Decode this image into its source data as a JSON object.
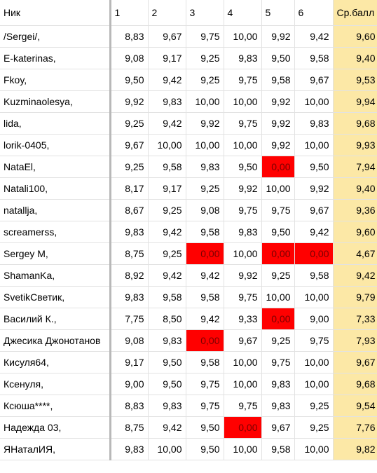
{
  "sheet": {
    "headers": [
      "Ник",
      "1",
      "2",
      "3",
      "4",
      "5",
      "6",
      "Ср.балл"
    ],
    "rows": [
      {
        "name": "/Sergei/,",
        "s1": "8,83",
        "s2": "9,67",
        "s3": "9,75",
        "s4": "10,00",
        "s5": "9,92",
        "s6": "9,42",
        "avg": "9,60"
      },
      {
        "name": "E-katerinas,",
        "s1": "9,08",
        "s2": "9,17",
        "s3": "9,25",
        "s4": "9,83",
        "s5": "9,50",
        "s6": "9,58",
        "avg": "9,40"
      },
      {
        "name": "Fkoy,",
        "s1": "9,50",
        "s2": "9,42",
        "s3": "9,25",
        "s4": "9,75",
        "s5": "9,58",
        "s6": "9,67",
        "avg": "9,53"
      },
      {
        "name": "Kuzminaolesya,",
        "s1": "9,92",
        "s2": "9,83",
        "s3": "10,00",
        "s4": "10,00",
        "s5": "9,92",
        "s6": "10,00",
        "avg": "9,94"
      },
      {
        "name": "lida,",
        "s1": "9,25",
        "s2": "9,42",
        "s3": "9,92",
        "s4": "9,75",
        "s5": "9,92",
        "s6": "9,83",
        "avg": "9,68"
      },
      {
        "name": "lorik-0405,",
        "s1": "9,67",
        "s2": "10,00",
        "s3": "10,00",
        "s4": "10,00",
        "s5": "9,92",
        "s6": "10,00",
        "avg": "9,93"
      },
      {
        "name": "NataEl,",
        "s1": "9,25",
        "s2": "9,58",
        "s3": "9,83",
        "s4": "9,50",
        "s5": "0,00",
        "s6": "9,50",
        "avg": "7,94"
      },
      {
        "name": "Natali100,",
        "s1": "8,17",
        "s2": "9,17",
        "s3": "9,25",
        "s4": "9,92",
        "s5": "10,00",
        "s6": "9,92",
        "avg": "9,40"
      },
      {
        "name": "natallja,",
        "s1": "8,67",
        "s2": "9,25",
        "s3": "9,08",
        "s4": "9,75",
        "s5": "9,75",
        "s6": "9,67",
        "avg": "9,36"
      },
      {
        "name": "screamerss,",
        "s1": "9,83",
        "s2": "9,42",
        "s3": "9,58",
        "s4": "9,83",
        "s5": "9,50",
        "s6": "9,42",
        "avg": "9,60"
      },
      {
        "name": "Sergey M,",
        "s1": "8,75",
        "s2": "9,25",
        "s3": "0,00",
        "s4": "10,00",
        "s5": "0,00",
        "s6": "0,00",
        "avg": "4,67"
      },
      {
        "name": "ShamanKa,",
        "s1": "8,92",
        "s2": "9,42",
        "s3": "9,42",
        "s4": "9,92",
        "s5": "9,25",
        "s6": "9,58",
        "avg": "9,42"
      },
      {
        "name": "SvetikСветик,",
        "s1": "9,83",
        "s2": "9,58",
        "s3": "9,58",
        "s4": "9,75",
        "s5": "10,00",
        "s6": "10,00",
        "avg": "9,79"
      },
      {
        "name": "Василий К.,",
        "s1": "7,75",
        "s2": "8,50",
        "s3": "9,42",
        "s4": "9,33",
        "s5": "0,00",
        "s6": "9,00",
        "avg": "7,33"
      },
      {
        "name": "Джесика Джонотанов",
        "s1": "9,08",
        "s2": "9,83",
        "s3": "0,00",
        "s4": "9,67",
        "s5": "9,25",
        "s6": "9,75",
        "avg": "7,93"
      },
      {
        "name": "Кисуля64,",
        "s1": "9,17",
        "s2": "9,50",
        "s3": "9,58",
        "s4": "10,00",
        "s5": "9,75",
        "s6": "10,00",
        "avg": "9,67"
      },
      {
        "name": "Ксенуля,",
        "s1": "9,00",
        "s2": "9,50",
        "s3": "9,75",
        "s4": "10,00",
        "s5": "9,83",
        "s6": "10,00",
        "avg": "9,68"
      },
      {
        "name": "Ксюша****,",
        "s1": "8,83",
        "s2": "9,83",
        "s3": "9,75",
        "s4": "9,75",
        "s5": "9,83",
        "s6": "9,25",
        "avg": "9,54"
      },
      {
        "name": "Надежда 03,",
        "s1": "8,75",
        "s2": "9,42",
        "s3": "9,50",
        "s4": "0,00",
        "s5": "9,67",
        "s6": "9,25",
        "avg": "7,76"
      },
      {
        "name": "ЯНаталИЯ,",
        "s1": "9,83",
        "s2": "10,00",
        "s3": "9,50",
        "s4": "10,00",
        "s5": "9,58",
        "s6": "10,00",
        "avg": "9,82"
      }
    ]
  },
  "colors": {
    "zero_highlight": "#ff0000",
    "average_column": "#fce8a6",
    "grid": "#e2e2e2"
  }
}
